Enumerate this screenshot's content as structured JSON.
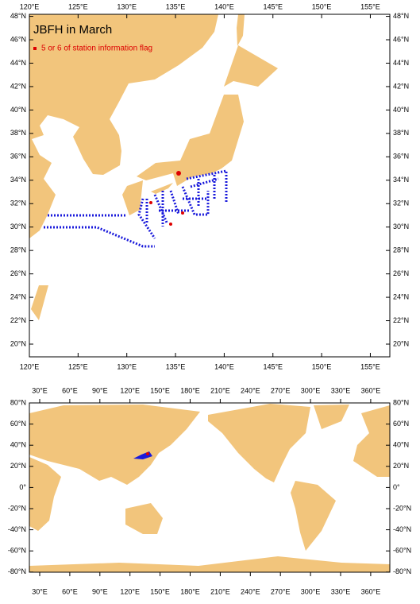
{
  "title": "JBFH in March",
  "legend": "5 or 6 of station information flag",
  "top_map": {
    "lon_labels": [
      "120°E",
      "125°E",
      "130°E",
      "135°E",
      "140°E",
      "145°E",
      "150°E",
      "155°E"
    ],
    "lat_labels": [
      "20°N",
      "22°N",
      "24°N",
      "26°N",
      "28°N",
      "30°N",
      "32°N",
      "34°N",
      "36°N",
      "38°N",
      "40°N",
      "42°N",
      "44°N",
      "46°N",
      "48°N"
    ]
  },
  "bottom_map": {
    "lon_labels": [
      "30°E",
      "60°E",
      "90°E",
      "120°E",
      "150°E",
      "180°E",
      "210°E",
      "240°E",
      "270°E",
      "300°E",
      "330°E",
      "360°E"
    ],
    "lat_labels": [
      "80°N",
      "60°N",
      "40°N",
      "20°N",
      "0°",
      "-20°N",
      "-40°N",
      "-60°N",
      "-80°N"
    ]
  }
}
